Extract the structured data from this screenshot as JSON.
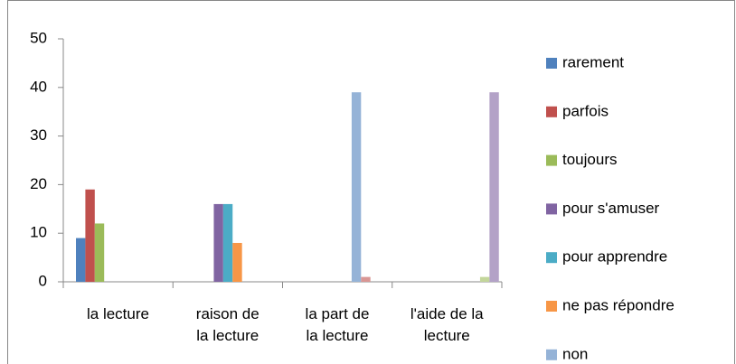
{
  "chart_data": {
    "type": "bar",
    "categories": [
      "la lecture",
      "raison de\nla lecture",
      "la part de\nla lecture",
      "l'aide de la\nlecture"
    ],
    "series": [
      {
        "name": "rarement",
        "color": "#4f81bd",
        "values": [
          9,
          null,
          null,
          null
        ]
      },
      {
        "name": "parfois",
        "color": "#c0504d",
        "values": [
          19,
          null,
          null,
          null
        ]
      },
      {
        "name": "toujours",
        "color": "#9bbb59",
        "values": [
          12,
          null,
          null,
          null
        ]
      },
      {
        "name": "pour s'amuser",
        "color": "#8064a2",
        "values": [
          null,
          16,
          null,
          null
        ]
      },
      {
        "name": "pour apprendre",
        "color": "#4bacc6",
        "values": [
          null,
          16,
          null,
          null
        ]
      },
      {
        "name": "ne pas répondre",
        "color": "#f79646",
        "values": [
          null,
          8,
          null,
          null
        ]
      },
      {
        "name": "non",
        "color": "#95b3d7",
        "values": [
          null,
          null,
          39,
          null
        ]
      },
      {
        "color": "#d99694",
        "values": [
          null,
          null,
          1,
          null
        ]
      },
      {
        "color": "#c3d69b",
        "values": [
          null,
          null,
          null,
          1
        ]
      },
      {
        "color": "#b3a2c7",
        "values": [
          null,
          null,
          null,
          39
        ]
      }
    ],
    "ylim": [
      0,
      50
    ],
    "yticks": [
      0,
      10,
      20,
      30,
      40,
      50
    ],
    "grid": false,
    "legend": "right"
  }
}
